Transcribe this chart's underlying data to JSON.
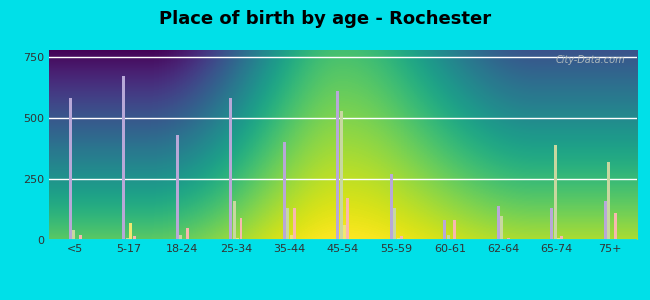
{
  "title": "Place of birth by age - Rochester",
  "categories": [
    "<5",
    "5-17",
    "18-24",
    "25-34",
    "35-44",
    "45-54",
    "55-59",
    "60-61",
    "62-64",
    "65-74",
    "75+"
  ],
  "series": {
    "Born in state of residence": [
      580,
      670,
      430,
      580,
      400,
      610,
      270,
      80,
      140,
      130,
      160
    ],
    "Born in other state": [
      40,
      10,
      20,
      160,
      130,
      530,
      130,
      20,
      100,
      390,
      320
    ],
    "Native, outside of US": [
      5,
      70,
      5,
      10,
      20,
      60,
      10,
      5,
      5,
      10,
      5
    ],
    "Foreign-born": [
      20,
      15,
      50,
      90,
      130,
      170,
      15,
      80,
      10,
      15,
      110
    ]
  },
  "colors": {
    "Born in state of residence": "#b8a8d8",
    "Born in other state": "#c8d8a0",
    "Native, outside of US": "#f0e870",
    "Foreign-born": "#f8b8b0"
  },
  "ylim": [
    0,
    780
  ],
  "yticks": [
    0,
    250,
    500,
    750
  ],
  "background_top": "#f0faf5",
  "background_bottom": "#d8f0e0",
  "outer_background": "#00e0e8",
  "title_fontsize": 13,
  "bar_width": 0.055,
  "legend_fontsize": 8,
  "grid_color": "#ffffff"
}
